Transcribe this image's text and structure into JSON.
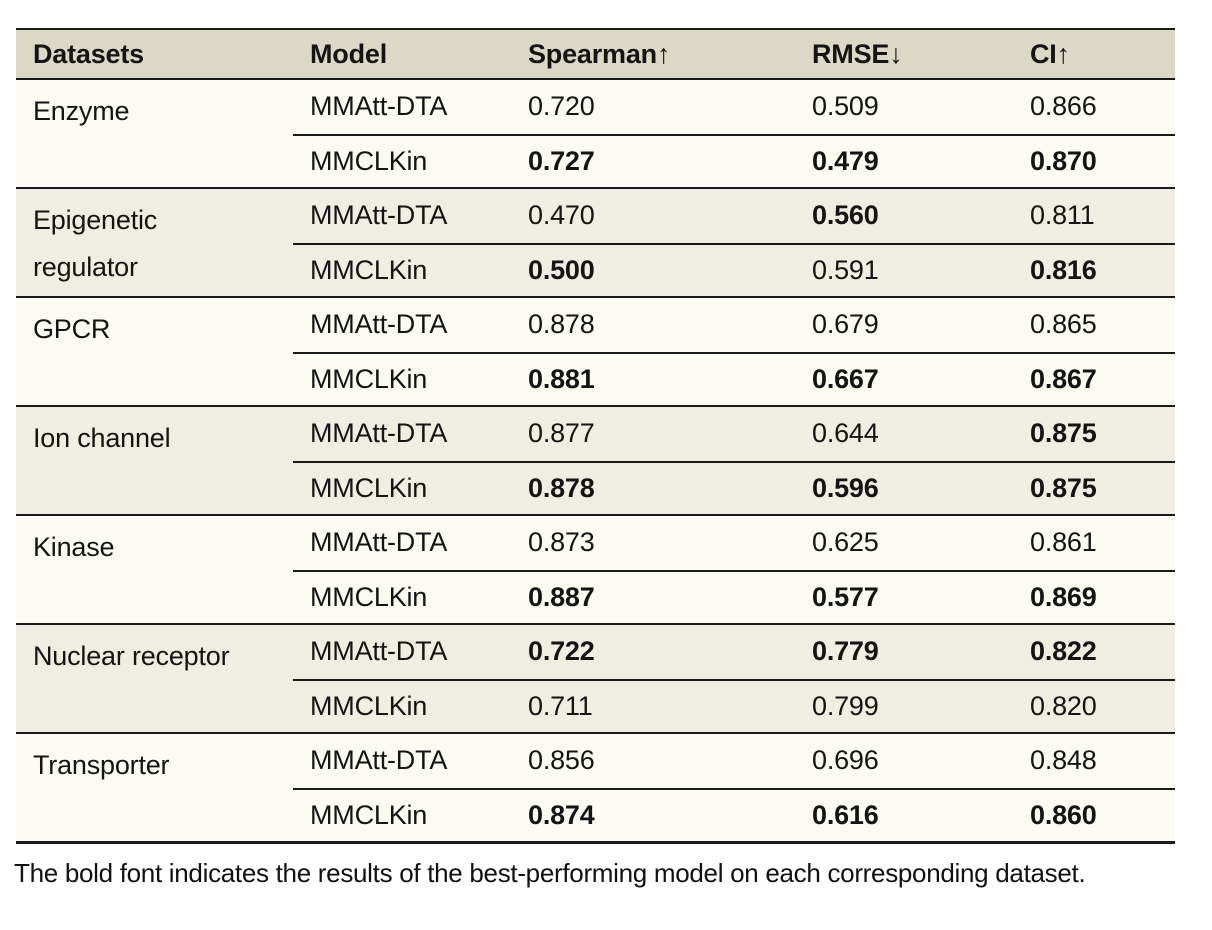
{
  "table": {
    "columns": [
      "Datasets",
      "Model",
      "Spearman↑",
      "RMSE↓",
      "CI↑"
    ],
    "groups": [
      {
        "dataset": "Enzyme",
        "shade": "light",
        "rows": [
          {
            "model": "MMAtt-DTA",
            "values": [
              {
                "text": "0.720",
                "bold": false
              },
              {
                "text": "0.509",
                "bold": false
              },
              {
                "text": "0.866",
                "bold": false
              }
            ]
          },
          {
            "model": "MMCLKin",
            "values": [
              {
                "text": "0.727",
                "bold": true
              },
              {
                "text": "0.479",
                "bold": true
              },
              {
                "text": "0.870",
                "bold": true
              }
            ]
          }
        ]
      },
      {
        "dataset": "Epigenetic regulator",
        "shade": "beige",
        "rows": [
          {
            "model": "MMAtt-DTA",
            "values": [
              {
                "text": "0.470",
                "bold": false
              },
              {
                "text": "0.560",
                "bold": true
              },
              {
                "text": "0.811",
                "bold": false
              }
            ]
          },
          {
            "model": "MMCLKin",
            "values": [
              {
                "text": "0.500",
                "bold": true
              },
              {
                "text": "0.591",
                "bold": false
              },
              {
                "text": "0.816",
                "bold": true
              }
            ]
          }
        ]
      },
      {
        "dataset": "GPCR",
        "shade": "light",
        "rows": [
          {
            "model": "MMAtt-DTA",
            "values": [
              {
                "text": "0.878",
                "bold": false
              },
              {
                "text": "0.679",
                "bold": false
              },
              {
                "text": "0.865",
                "bold": false
              }
            ]
          },
          {
            "model": "MMCLKin",
            "values": [
              {
                "text": "0.881",
                "bold": true
              },
              {
                "text": "0.667",
                "bold": true
              },
              {
                "text": "0.867",
                "bold": true
              }
            ]
          }
        ]
      },
      {
        "dataset": "Ion channel",
        "shade": "beige",
        "rows": [
          {
            "model": "MMAtt-DTA",
            "values": [
              {
                "text": "0.877",
                "bold": false
              },
              {
                "text": "0.644",
                "bold": false
              },
              {
                "text": "0.875",
                "bold": true
              }
            ]
          },
          {
            "model": "MMCLKin",
            "values": [
              {
                "text": "0.878",
                "bold": true
              },
              {
                "text": "0.596",
                "bold": true
              },
              {
                "text": "0.875",
                "bold": true
              }
            ]
          }
        ]
      },
      {
        "dataset": "Kinase",
        "shade": "light",
        "rows": [
          {
            "model": "MMAtt-DTA",
            "values": [
              {
                "text": "0.873",
                "bold": false
              },
              {
                "text": "0.625",
                "bold": false
              },
              {
                "text": "0.861",
                "bold": false
              }
            ]
          },
          {
            "model": "MMCLKin",
            "values": [
              {
                "text": "0.887",
                "bold": true
              },
              {
                "text": "0.577",
                "bold": true
              },
              {
                "text": "0.869",
                "bold": true
              }
            ]
          }
        ]
      },
      {
        "dataset": "Nuclear receptor",
        "shade": "beige",
        "rows": [
          {
            "model": "MMAtt-DTA",
            "values": [
              {
                "text": "0.722",
                "bold": true
              },
              {
                "text": "0.779",
                "bold": true
              },
              {
                "text": "0.822",
                "bold": true
              }
            ]
          },
          {
            "model": "MMCLKin",
            "values": [
              {
                "text": "0.711",
                "bold": false
              },
              {
                "text": "0.799",
                "bold": false
              },
              {
                "text": "0.820",
                "bold": false
              }
            ]
          }
        ]
      },
      {
        "dataset": "Transporter",
        "shade": "light",
        "rows": [
          {
            "model": "MMAtt-DTA",
            "values": [
              {
                "text": "0.856",
                "bold": false
              },
              {
                "text": "0.696",
                "bold": false
              },
              {
                "text": "0.848",
                "bold": false
              }
            ]
          },
          {
            "model": "MMCLKin",
            "values": [
              {
                "text": "0.874",
                "bold": true
              },
              {
                "text": "0.616",
                "bold": true
              },
              {
                "text": "0.860",
                "bold": true
              }
            ]
          }
        ]
      }
    ]
  },
  "footnote": "The bold font indicates the results of the best-performing model on each corresponding dataset.",
  "colors": {
    "header_bg": "#dcd8c6",
    "light_group_bg": "#fbfaf3",
    "beige_group_bg": "#f0ede2",
    "border": "#1a1a1a",
    "text": "#141414"
  }
}
